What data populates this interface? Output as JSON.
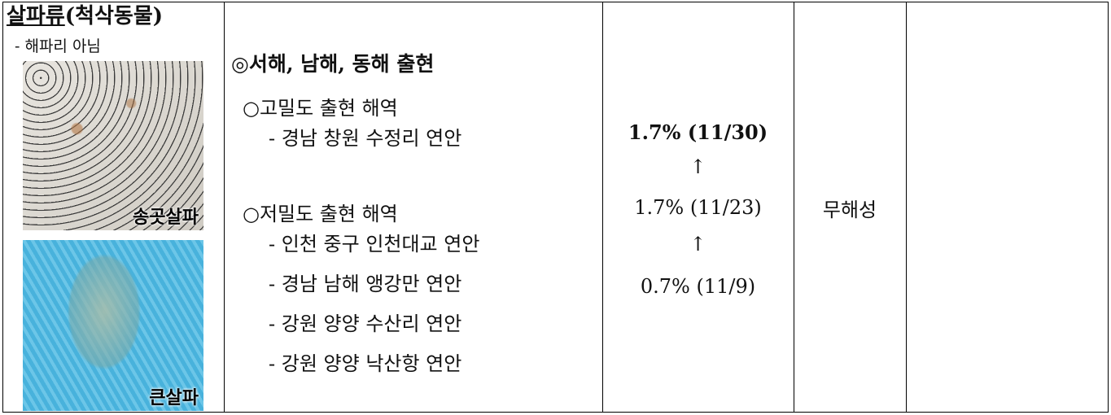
{
  "table": {
    "species": {
      "name": "살파류",
      "category": "(척삭동물)",
      "note": "- 해파리 아님",
      "images": [
        {
          "label": "송곳살파"
        },
        {
          "label": "큰살파"
        }
      ]
    },
    "distribution": {
      "heading": "◎서해, 남해, 동해 출현",
      "groups": [
        {
          "heading": "○고밀도 출현 해역",
          "items": [
            "- 경남 창원 수정리 연안"
          ]
        },
        {
          "heading": "○저밀도 출현 해역",
          "items": [
            "- 인천 중구 인천대교 연안",
            "- 경남 남해 앵강만 연안",
            "- 강원 양양 수산리 연안",
            "- 강원 양양 낙산항 연안"
          ]
        }
      ]
    },
    "rates": [
      "1.7% (11/30)",
      "↑",
      "1.7% (11/23)",
      "↑",
      "0.7% (11/9)"
    ],
    "harm": "무해성"
  }
}
